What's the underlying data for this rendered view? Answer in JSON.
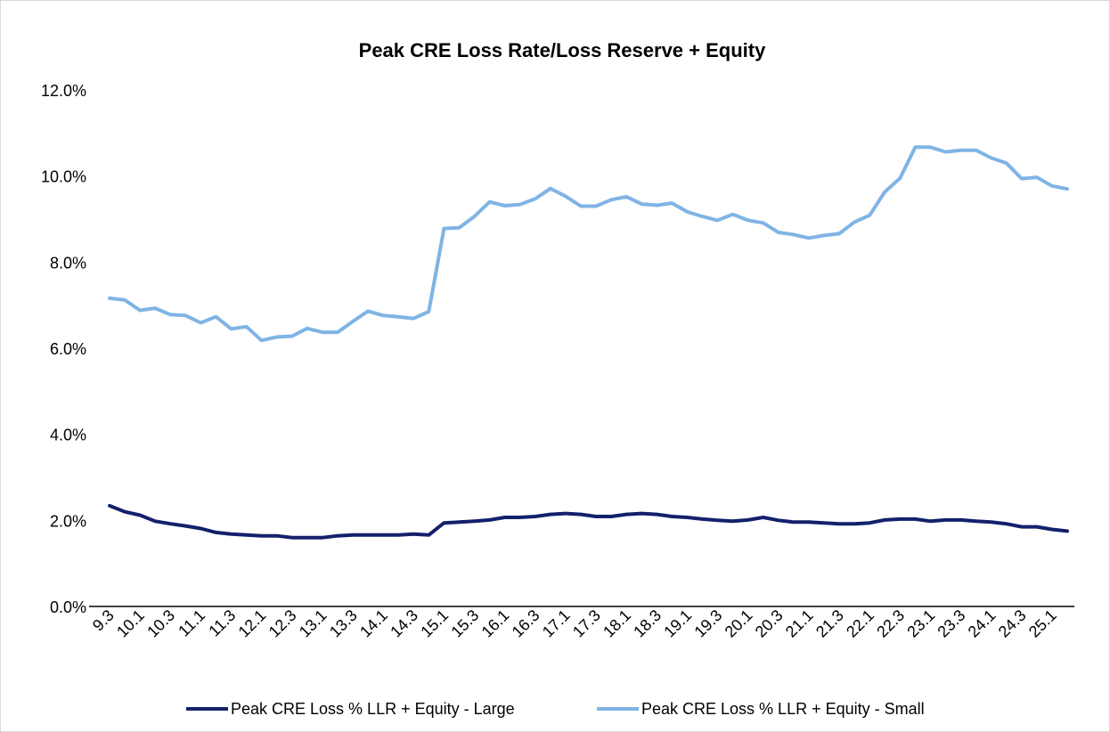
{
  "chart_data": {
    "type": "line",
    "title": "Peak CRE Loss Rate/Loss Reserve + Equity",
    "xlabel": "",
    "ylabel": "",
    "ylim": [
      0,
      12
    ],
    "y_ticks": [
      "0.0%",
      "2.0%",
      "4.0%",
      "6.0%",
      "8.0%",
      "10.0%",
      "12.0%"
    ],
    "x_tick_labels": [
      "9.3",
      "10.1",
      "10.3",
      "11.1",
      "11.3",
      "12.1",
      "12.3",
      "13.1",
      "13.3",
      "14.1",
      "14.3",
      "15.1",
      "15.3",
      "16.1",
      "16.3",
      "17.1",
      "17.3",
      "18.1",
      "18.3",
      "19.1",
      "19.3",
      "20.1",
      "20.3",
      "21.1",
      "21.3",
      "22.1",
      "22.3",
      "23.1",
      "23.3",
      "24.1",
      "24.3",
      "25.1"
    ],
    "x": [
      "9.3",
      "9.4",
      "10.1",
      "10.2",
      "10.3",
      "10.4",
      "11.1",
      "11.2",
      "11.3",
      "11.4",
      "12.1",
      "12.2",
      "12.3",
      "12.4",
      "13.1",
      "13.2",
      "13.3",
      "13.4",
      "14.1",
      "14.2",
      "14.3",
      "14.4",
      "15.1",
      "15.2",
      "15.3",
      "15.4",
      "16.1",
      "16.2",
      "16.3",
      "16.4",
      "17.1",
      "17.2",
      "17.3",
      "17.4",
      "18.1",
      "18.2",
      "18.3",
      "18.4",
      "19.1",
      "19.2",
      "19.3",
      "19.4",
      "20.1",
      "20.2",
      "20.3",
      "20.4",
      "21.1",
      "21.2",
      "21.3",
      "21.4",
      "22.1",
      "22.2",
      "22.3",
      "22.4",
      "23.1",
      "23.2",
      "23.3",
      "23.4",
      "24.1",
      "24.2",
      "24.3",
      "24.4",
      "25.1",
      "25.2"
    ],
    "series": [
      {
        "name": "Peak CRE Loss % LLR + Equity - Large",
        "color": "#13206b",
        "values": [
          2.34,
          2.2,
          2.12,
          1.98,
          1.92,
          1.87,
          1.81,
          1.72,
          1.68,
          1.66,
          1.64,
          1.64,
          1.6,
          1.6,
          1.6,
          1.64,
          1.66,
          1.66,
          1.66,
          1.66,
          1.68,
          1.66,
          1.94,
          1.96,
          1.98,
          2.01,
          2.07,
          2.07,
          2.09,
          2.14,
          2.16,
          2.14,
          2.09,
          2.09,
          2.14,
          2.16,
          2.14,
          2.09,
          2.07,
          2.03,
          2.0,
          1.98,
          2.01,
          2.07,
          2.0,
          1.96,
          1.96,
          1.94,
          1.92,
          1.92,
          1.94,
          2.01,
          2.03,
          2.03,
          1.98,
          2.01,
          2.01,
          1.98,
          1.96,
          1.92,
          1.85,
          1.85,
          1.79,
          1.75
        ]
      },
      {
        "name": "Peak CRE Loss % LLR + Equity - Small",
        "color": "#7fb4e4",
        "values": [
          7.16,
          7.12,
          6.88,
          6.93,
          6.78,
          6.76,
          6.59,
          6.73,
          6.45,
          6.5,
          6.18,
          6.26,
          6.28,
          6.46,
          6.37,
          6.37,
          6.62,
          6.86,
          6.76,
          6.73,
          6.69,
          6.85,
          8.78,
          8.8,
          9.06,
          9.4,
          9.31,
          9.34,
          9.47,
          9.71,
          9.53,
          9.3,
          9.3,
          9.45,
          9.52,
          9.35,
          9.32,
          9.37,
          9.17,
          9.06,
          8.97,
          9.11,
          8.97,
          8.91,
          8.69,
          8.64,
          8.56,
          8.62,
          8.66,
          8.93,
          9.09,
          9.63,
          9.95,
          10.67,
          10.67,
          10.56,
          10.6,
          10.6,
          10.42,
          10.3,
          9.94,
          9.97,
          9.77,
          9.7
        ]
      }
    ],
    "legend": "bottom"
  }
}
